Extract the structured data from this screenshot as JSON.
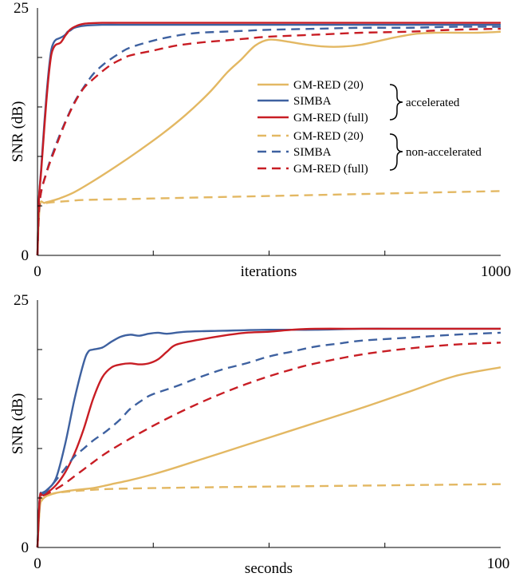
{
  "legend": {
    "entries": [
      {
        "label": "GM-RED (20)",
        "color": "#E3B863",
        "dash": false
      },
      {
        "label": "SIMBA",
        "color": "#3E61A0",
        "dash": false
      },
      {
        "label": "GM-RED (full)",
        "color": "#C81D24",
        "dash": false
      },
      {
        "label": "GM-RED (20)",
        "color": "#E3B863",
        "dash": true
      },
      {
        "label": "SIMBA",
        "color": "#3E61A0",
        "dash": true
      },
      {
        "label": "GM-RED (full)",
        "color": "#C81D24",
        "dash": true
      }
    ],
    "groups": [
      "accelerated",
      "non-accelerated"
    ]
  },
  "chart_data": [
    {
      "type": "line",
      "xlabel": "iterations",
      "ylabel": "SNR (dB)",
      "xlim": [
        0,
        1000
      ],
      "ylim": [
        0,
        25
      ],
      "x_tick_labels": [
        "0",
        "1000"
      ],
      "y_tick_labels": [
        "0",
        "25"
      ],
      "x_minor_ticks": [
        250,
        500,
        750
      ],
      "y_minor_ticks": [
        5,
        10,
        15,
        20
      ],
      "series": [
        {
          "name": "GM-RED (20)",
          "style": "solid",
          "color": "#E3B863",
          "x": [
            0,
            5,
            15,
            30,
            50,
            80,
            120,
            170,
            220,
            270,
            320,
            370,
            410,
            440,
            470,
            500,
            540,
            580,
            620,
            660,
            700,
            740,
            780,
            820,
            860,
            900,
            950,
            1000
          ],
          "y": [
            0,
            5.0,
            5.3,
            5.5,
            5.8,
            6.4,
            7.5,
            9.0,
            10.6,
            12.3,
            14.2,
            16.4,
            18.5,
            19.8,
            21.2,
            21.8,
            21.6,
            21.3,
            21.1,
            21.1,
            21.3,
            21.7,
            22.1,
            22.4,
            22.5,
            22.5,
            22.5,
            22.6
          ]
        },
        {
          "name": "SIMBA",
          "style": "solid",
          "color": "#3E61A0",
          "x": [
            0,
            3,
            8,
            15,
            20,
            25,
            30,
            35,
            40,
            50,
            60,
            65,
            70,
            80,
            100,
            140,
            200,
            300,
            400,
            500,
            600,
            700,
            800,
            900,
            1000
          ],
          "y": [
            0,
            5.5,
            8.8,
            13.5,
            16.5,
            19.0,
            20.8,
            21.5,
            21.8,
            22.0,
            22.3,
            22.6,
            22.7,
            23.0,
            23.2,
            23.3,
            23.3,
            23.3,
            23.3,
            23.3,
            23.3,
            23.3,
            23.3,
            23.3,
            23.3
          ]
        },
        {
          "name": "GM-RED (full)",
          "style": "solid",
          "color": "#C81D24",
          "x": [
            0,
            3,
            8,
            15,
            20,
            25,
            30,
            35,
            40,
            50,
            60,
            65,
            70,
            80,
            100,
            140,
            200,
            300,
            400,
            500,
            600,
            700,
            800,
            900,
            1000
          ],
          "y": [
            0,
            5.5,
            8.5,
            13.0,
            16.0,
            18.5,
            20.3,
            21.0,
            21.3,
            21.5,
            22.2,
            22.5,
            22.8,
            23.1,
            23.4,
            23.5,
            23.5,
            23.5,
            23.5,
            23.5,
            23.5,
            23.5,
            23.5,
            23.5,
            23.5
          ]
        },
        {
          "name": "GM-RED (20)",
          "style": "dashed",
          "color": "#E3B863",
          "x": [
            0,
            3,
            10,
            20,
            40,
            70,
            100,
            200,
            300,
            400,
            500,
            600,
            700,
            800,
            900,
            1000
          ],
          "y": [
            0,
            4.6,
            5.1,
            5.3,
            5.4,
            5.5,
            5.6,
            5.7,
            5.8,
            5.9,
            6.0,
            6.1,
            6.2,
            6.3,
            6.4,
            6.5
          ]
        },
        {
          "name": "SIMBA",
          "style": "dashed",
          "color": "#3E61A0",
          "x": [
            0,
            5,
            20,
            40,
            60,
            80,
            100,
            120,
            140,
            160,
            180,
            200,
            250,
            300,
            350,
            400,
            450,
            500,
            600,
            700,
            800,
            900,
            1000
          ],
          "y": [
            0,
            5.5,
            8.5,
            11.2,
            13.5,
            15.5,
            17.0,
            18.3,
            19.2,
            19.9,
            20.5,
            21.0,
            21.7,
            22.2,
            22.5,
            22.6,
            22.7,
            22.8,
            22.9,
            23.0,
            23.0,
            23.1,
            23.1
          ]
        },
        {
          "name": "GM-RED (full)",
          "style": "dashed",
          "color": "#C81D24",
          "x": [
            0,
            5,
            20,
            40,
            60,
            80,
            100,
            120,
            140,
            160,
            180,
            200,
            250,
            300,
            350,
            400,
            450,
            500,
            600,
            700,
            800,
            900,
            1000
          ],
          "y": [
            0,
            5.5,
            8.4,
            11.0,
            13.4,
            15.4,
            16.9,
            17.8,
            18.6,
            19.3,
            19.8,
            20.2,
            20.7,
            21.2,
            21.5,
            21.7,
            21.9,
            22.1,
            22.3,
            22.5,
            22.6,
            22.8,
            22.9
          ]
        }
      ]
    },
    {
      "type": "line",
      "xlabel": "seconds",
      "ylabel": "SNR (dB)",
      "xlim": [
        0,
        100
      ],
      "ylim": [
        0,
        25
      ],
      "x_tick_labels": [
        "0",
        "100"
      ],
      "y_tick_labels": [
        "0",
        "25"
      ],
      "x_minor_ticks": [
        25,
        50,
        75
      ],
      "y_minor_ticks": [
        5,
        10,
        15,
        20
      ],
      "series": [
        {
          "name": "GM-RED (20)",
          "style": "solid",
          "color": "#E3B863",
          "x": [
            0,
            0.5,
            1,
            2,
            3,
            5,
            8,
            12,
            16,
            20,
            25,
            30,
            40,
            50,
            60,
            70,
            80,
            90,
            100
          ],
          "y": [
            0,
            4.0,
            4.8,
            5.2,
            5.4,
            5.6,
            5.8,
            6.0,
            6.4,
            6.8,
            7.4,
            8.1,
            9.6,
            11.1,
            12.6,
            14.1,
            15.7,
            17.3,
            18.2
          ]
        },
        {
          "name": "SIMBA",
          "style": "solid",
          "color": "#3E61A0",
          "x": [
            0,
            0.5,
            1,
            2,
            4,
            6,
            8,
            10,
            11,
            12,
            14,
            16,
            18,
            20,
            22,
            24,
            26,
            28,
            32,
            40,
            50,
            60,
            70,
            80,
            90,
            100
          ],
          "y": [
            0,
            5.0,
            5.5,
            5.8,
            7.0,
            10.5,
            15.0,
            18.7,
            19.8,
            20.0,
            20.2,
            20.8,
            21.3,
            21.5,
            21.4,
            21.6,
            21.7,
            21.6,
            21.8,
            21.9,
            22.0,
            22.0,
            22.1,
            22.1,
            22.1,
            22.1
          ]
        },
        {
          "name": "GM-RED (full)",
          "style": "solid",
          "color": "#C81D24",
          "x": [
            0,
            0.5,
            1,
            2,
            4,
            6,
            8,
            10,
            12,
            14,
            16,
            18,
            20,
            22,
            24,
            26,
            28,
            30,
            35,
            40,
            45,
            50,
            55,
            60,
            70,
            80,
            90,
            100
          ],
          "y": [
            0,
            5.0,
            5.3,
            5.5,
            6.3,
            7.6,
            9.5,
            12.0,
            15.0,
            17.2,
            18.2,
            18.5,
            18.6,
            18.5,
            18.6,
            19.0,
            19.8,
            20.5,
            21.0,
            21.4,
            21.7,
            21.8,
            22.0,
            22.1,
            22.1,
            22.1,
            22.1,
            22.1
          ]
        },
        {
          "name": "GM-RED (20)",
          "style": "dashed",
          "color": "#E3B863",
          "x": [
            0,
            0.5,
            1,
            2,
            4,
            8,
            15,
            25,
            40,
            60,
            80,
            100
          ],
          "y": [
            0,
            4.5,
            5.0,
            5.2,
            5.5,
            5.7,
            5.9,
            6.0,
            6.1,
            6.2,
            6.3,
            6.4
          ]
        },
        {
          "name": "SIMBA",
          "style": "dashed",
          "color": "#3E61A0",
          "x": [
            0,
            0.5,
            1,
            2,
            4,
            6,
            8,
            10,
            12,
            15,
            18,
            20,
            23,
            25,
            30,
            35,
            40,
            45,
            50,
            55,
            60,
            65,
            70,
            80,
            90,
            100
          ],
          "y": [
            0,
            5.0,
            5.3,
            5.7,
            6.8,
            8.0,
            9.2,
            10.0,
            10.8,
            11.8,
            13.0,
            14.0,
            15.0,
            15.5,
            16.3,
            17.2,
            18.0,
            18.6,
            19.3,
            19.8,
            20.3,
            20.6,
            20.9,
            21.2,
            21.5,
            21.7
          ]
        },
        {
          "name": "GM-RED (full)",
          "style": "dashed",
          "color": "#C81D24",
          "x": [
            0,
            0.5,
            1,
            2,
            4,
            6,
            8,
            10,
            12,
            15,
            20,
            25,
            30,
            35,
            40,
            45,
            50,
            55,
            60,
            70,
            80,
            90,
            100
          ],
          "y": [
            0,
            5.0,
            5.2,
            5.4,
            5.9,
            6.5,
            7.2,
            7.9,
            8.6,
            9.6,
            11.0,
            12.3,
            13.5,
            14.6,
            15.6,
            16.5,
            17.3,
            18.0,
            18.6,
            19.5,
            20.1,
            20.5,
            20.7
          ]
        }
      ]
    }
  ]
}
